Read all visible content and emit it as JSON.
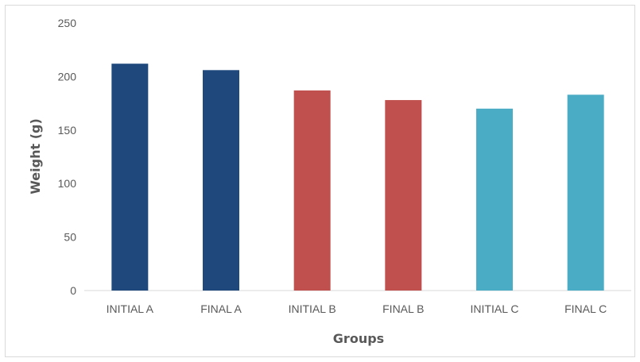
{
  "chart_data": {
    "type": "bar",
    "title": "",
    "xlabel": "Groups",
    "ylabel": "Weight (g)",
    "ylim": [
      0,
      250
    ],
    "yticks": [
      0,
      50,
      100,
      150,
      200,
      250
    ],
    "grid": false,
    "legend": "none",
    "categories": [
      "INITIAL A",
      "FINAL A",
      "INITIAL B",
      "FINAL B",
      "INITIAL C",
      "FINAL C"
    ],
    "values": [
      212,
      206,
      187,
      178,
      170,
      183
    ],
    "colors": [
      "#1f497d",
      "#1f497d",
      "#c0504d",
      "#c0504d",
      "#4bacc6",
      "#4bacc6"
    ]
  }
}
